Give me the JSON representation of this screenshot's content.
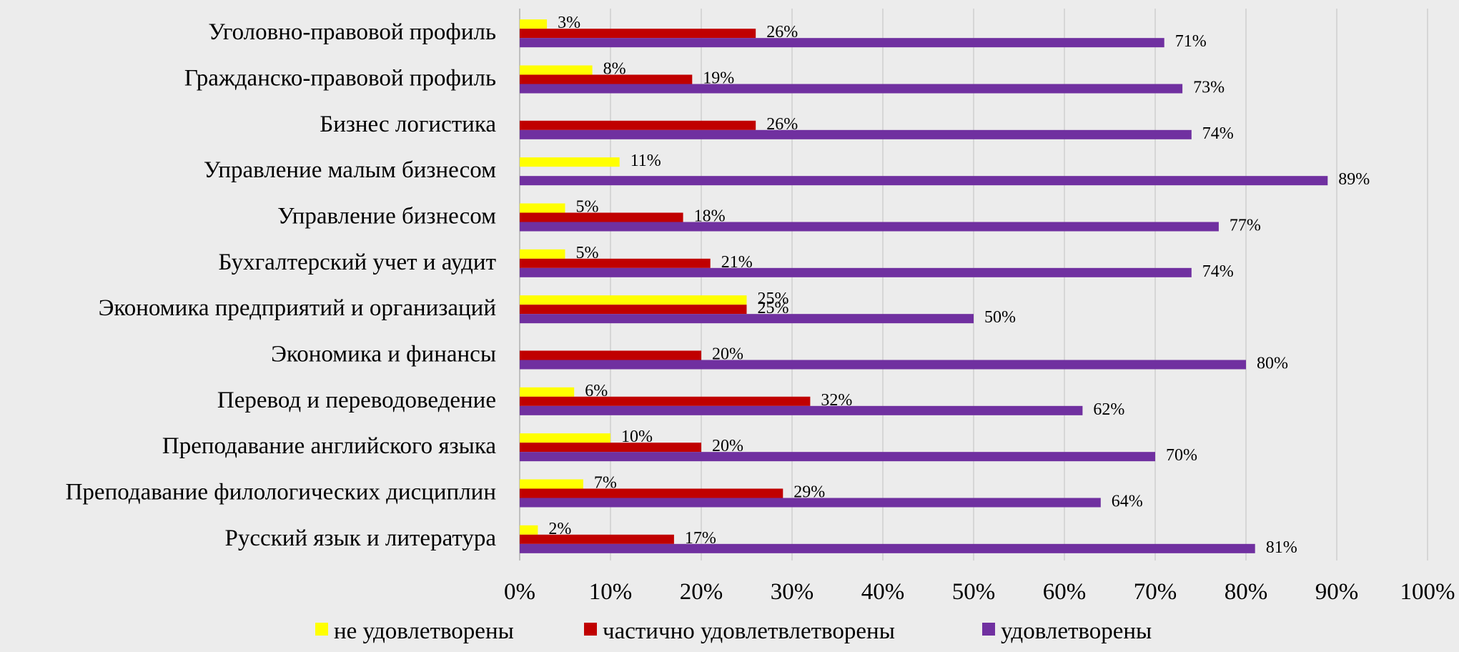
{
  "chart_data": {
    "type": "bar",
    "orientation": "horizontal",
    "categories": [
      "Уголовно-правовой профиль",
      "Гражданско-правовой профиль",
      "Бизнес логистика",
      "Управление малым бизнесом",
      "Управление бизнесом",
      "Бухгалтерский учет и аудит",
      "Экономика предприятий и организаций",
      "Экономика и финансы",
      "Перевод и переводоведение",
      "Преподавание английского языка",
      "Преподавание филологических дисциплин",
      "Русский язык и литература"
    ],
    "series": [
      {
        "name": "не удовлетворены",
        "color": "#ffff00",
        "values": [
          3,
          8,
          null,
          11,
          5,
          5,
          25,
          null,
          6,
          10,
          7,
          2
        ]
      },
      {
        "name": "частично удовлетвлетворены",
        "color": "#c00000",
        "values": [
          26,
          19,
          26,
          null,
          18,
          21,
          25,
          20,
          32,
          20,
          29,
          17
        ]
      },
      {
        "name": "удовлетворены",
        "color": "#7030a0",
        "values": [
          71,
          73,
          74,
          89,
          77,
          74,
          50,
          80,
          62,
          70,
          64,
          81
        ]
      }
    ],
    "value_suffix": "%",
    "xlim": [
      0,
      100
    ],
    "xticks": [
      "0%",
      "10%",
      "20%",
      "30%",
      "40%",
      "50%",
      "60%",
      "70%",
      "80%",
      "90%",
      "100%"
    ],
    "grid": true,
    "legend_position": "bottom",
    "title": "",
    "xlabel": "",
    "ylabel": ""
  }
}
